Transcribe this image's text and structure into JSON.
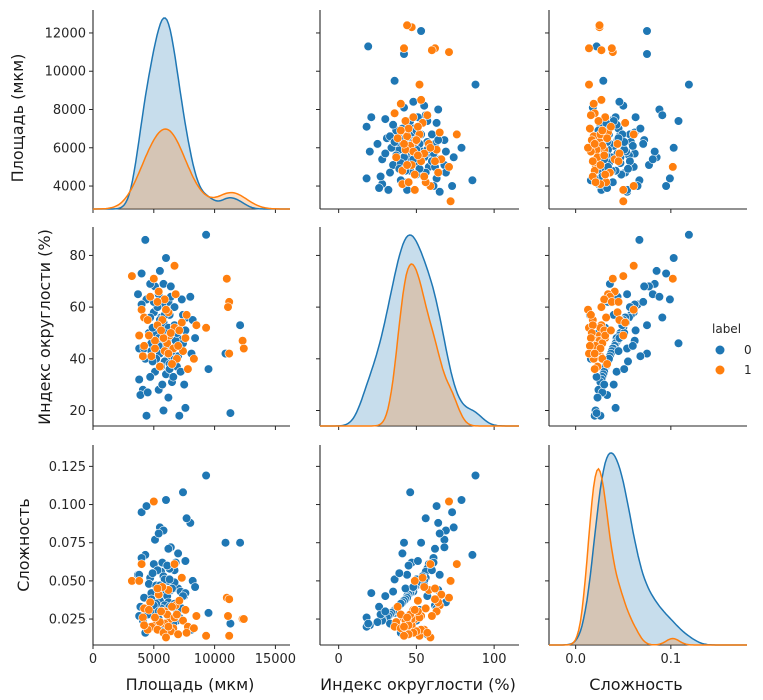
{
  "chart_data": {
    "type": "scatter",
    "subtype": "pairplot",
    "variables": [
      "Площадь (мкм)",
      "Индекс округлости (%)",
      "Сложность"
    ],
    "hue": "label",
    "legend": {
      "title": "label",
      "entries": [
        {
          "label": "0",
          "color": "#1f77b4"
        },
        {
          "label": "1",
          "color": "#ff7f0e"
        }
      ],
      "placement": "right"
    },
    "diagonal": "kde",
    "axes": {
      "area": {
        "label": "Площадь (мкм)",
        "xlim": [
          0,
          16200
        ],
        "ylim": [
          2800,
          13200
        ],
        "xticks": [
          0,
          5000,
          10000,
          15000
        ],
        "xtick_labels": [
          "0",
          "5000",
          "10000",
          "15000"
        ],
        "yticks": [
          4000,
          6000,
          8000,
          10000,
          12000
        ],
        "ytick_labels": [
          "4000",
          "6000",
          "8000",
          "10000",
          "12000"
        ]
      },
      "roundness": {
        "label": "Индекс округлости (%)",
        "xlim": [
          -12,
          116
        ],
        "ylim": [
          14,
          91
        ],
        "xticks": [
          0,
          50,
          100
        ],
        "xtick_labels": [
          "0",
          "50",
          "100"
        ],
        "yticks": [
          20,
          40,
          60,
          80
        ],
        "ytick_labels": [
          "20",
          "40",
          "60",
          "80"
        ]
      },
      "complexity": {
        "label": "Сложность",
        "xlim": [
          -0.028,
          0.18
        ],
        "ylim": [
          0.008,
          0.139
        ],
        "xticks": [
          0.0,
          0.1
        ],
        "xtick_labels": [
          "0.0",
          "0.1"
        ],
        "yticks": [
          0.025,
          0.05,
          0.075,
          0.1,
          0.125
        ],
        "ytick_labels": [
          "0.025",
          "0.050",
          "0.075",
          "0.100",
          "0.125"
        ]
      }
    },
    "points": {
      "label_0": [
        [
          4300,
          86,
          0.067
        ],
        [
          9300,
          88,
          0.119
        ],
        [
          6000,
          79,
          0.103
        ],
        [
          5500,
          74,
          0.085
        ],
        [
          4000,
          73,
          0.095
        ],
        [
          5800,
          69,
          0.083
        ],
        [
          5100,
          68,
          0.077
        ],
        [
          6400,
          68,
          0.072
        ],
        [
          5400,
          65,
          0.081
        ],
        [
          3700,
          65,
          0.054
        ],
        [
          4400,
          63,
          0.099
        ],
        [
          4000,
          61,
          0.065
        ],
        [
          8000,
          64,
          0.088
        ],
        [
          6200,
          62,
          0.071
        ],
        [
          5700,
          61,
          0.062
        ],
        [
          6700,
          60,
          0.057
        ],
        [
          5000,
          58,
          0.061
        ],
        [
          6300,
          57,
          0.058
        ],
        [
          5600,
          56,
          0.056
        ],
        [
          4700,
          56,
          0.052
        ],
        [
          7700,
          56,
          0.091
        ],
        [
          5800,
          54,
          0.053
        ],
        [
          6200,
          52,
          0.05
        ],
        [
          4600,
          50,
          0.048
        ],
        [
          5200,
          50,
          0.047
        ],
        [
          5900,
          50,
          0.051
        ],
        [
          6600,
          49,
          0.046
        ],
        [
          7000,
          48,
          0.045
        ],
        [
          6300,
          48,
          0.043
        ],
        [
          5700,
          47,
          0.044
        ],
        [
          4800,
          46,
          0.042
        ],
        [
          5400,
          45,
          0.041
        ],
        [
          6100,
          44,
          0.04
        ],
        [
          3800,
          44,
          0.054
        ],
        [
          4200,
          44,
          0.039
        ],
        [
          4800,
          43,
          0.038
        ],
        [
          5500,
          42,
          0.037
        ],
        [
          6200,
          41,
          0.036
        ],
        [
          6700,
          40,
          0.035
        ],
        [
          5900,
          39,
          0.034
        ],
        [
          6300,
          38,
          0.033
        ],
        [
          5600,
          37,
          0.032
        ],
        [
          6900,
          37,
          0.031
        ],
        [
          7200,
          35,
          0.043
        ],
        [
          9500,
          36,
          0.029
        ],
        [
          5100,
          35,
          0.03
        ],
        [
          6000,
          34,
          0.029
        ],
        [
          4700,
          33,
          0.028
        ],
        [
          3800,
          32,
          0.027
        ],
        [
          6500,
          31,
          0.026
        ],
        [
          5400,
          28,
          0.025
        ],
        [
          4100,
          28,
          0.024
        ],
        [
          7500,
          30,
          0.04
        ],
        [
          3900,
          26,
          0.033
        ],
        [
          4500,
          27,
          0.028
        ],
        [
          6200,
          25,
          0.023
        ],
        [
          5800,
          20,
          0.021
        ],
        [
          7600,
          21,
          0.042
        ],
        [
          4400,
          18,
          0.02
        ],
        [
          7100,
          18,
          0.026
        ],
        [
          11300,
          19,
          0.022
        ],
        [
          10900,
          42,
          0.075
        ],
        [
          7400,
          46,
          0.108
        ],
        [
          8200,
          55,
          0.05
        ],
        [
          6800,
          47,
          0.062
        ],
        [
          5300,
          60,
          0.057
        ],
        [
          6700,
          53,
          0.049
        ],
        [
          7400,
          57,
          0.04
        ],
        [
          6400,
          64,
          0.044
        ],
        [
          5200,
          40,
          0.035
        ],
        [
          4900,
          52,
          0.031
        ],
        [
          6100,
          45,
          0.06
        ],
        [
          5700,
          30,
          0.03
        ],
        [
          7000,
          41,
          0.068
        ],
        [
          4300,
          40,
          0.016
        ],
        [
          6900,
          50,
          0.024
        ],
        [
          5900,
          57,
          0.015
        ],
        [
          6600,
          33,
          0.022
        ],
        [
          5000,
          62,
          0.034
        ],
        [
          8100,
          42,
          0.018
        ],
        [
          12100,
          53,
          0.075
        ],
        [
          5400,
          48,
          0.03
        ],
        [
          6300,
          36,
          0.051
        ],
        [
          4700,
          69,
          0.036
        ],
        [
          5500,
          55,
          0.047
        ],
        [
          6500,
          43,
          0.045
        ],
        [
          7300,
          63,
          0.032
        ],
        [
          4900,
          39,
          0.055
        ],
        [
          7600,
          51,
          0.063
        ],
        [
          8400,
          48,
          0.046
        ]
      ],
      "label_1": [
        [
          3200,
          72,
          0.05
        ],
        [
          6700,
          76,
          0.061
        ],
        [
          11000,
          71,
          0.039
        ],
        [
          5000,
          71,
          0.102
        ],
        [
          5400,
          66,
          0.041
        ],
        [
          6800,
          65,
          0.034
        ],
        [
          4700,
          64,
          0.036
        ],
        [
          5900,
          63,
          0.03
        ],
        [
          11200,
          62,
          0.038
        ],
        [
          11100,
          60,
          0.027
        ],
        [
          4000,
          59,
          0.061
        ],
        [
          6200,
          58,
          0.044
        ],
        [
          4200,
          56,
          0.032
        ],
        [
          5700,
          55,
          0.046
        ],
        [
          7300,
          54,
          0.052
        ],
        [
          8500,
          53,
          0.027
        ],
        [
          9300,
          52,
          0.014
        ],
        [
          3800,
          49,
          0.05
        ],
        [
          6300,
          49,
          0.025
        ],
        [
          5100,
          47,
          0.021
        ],
        [
          12300,
          47,
          0.025
        ],
        [
          12400,
          44,
          0.025
        ],
        [
          7600,
          48,
          0.031
        ],
        [
          6100,
          46,
          0.028
        ],
        [
          4100,
          41,
          0.026
        ],
        [
          4800,
          41,
          0.02
        ],
        [
          5900,
          43,
          0.022
        ],
        [
          6600,
          44,
          0.019
        ],
        [
          7400,
          43,
          0.024
        ],
        [
          5500,
          37,
          0.023
        ],
        [
          7800,
          36,
          0.02
        ],
        [
          6700,
          52,
          0.026
        ],
        [
          4500,
          55,
          0.018
        ],
        [
          5300,
          53,
          0.018
        ],
        [
          6400,
          50,
          0.017
        ],
        [
          5800,
          48,
          0.016
        ],
        [
          4200,
          45,
          0.021
        ],
        [
          7000,
          45,
          0.015
        ],
        [
          6900,
          40,
          0.028
        ],
        [
          8300,
          40,
          0.019
        ],
        [
          11200,
          42,
          0.014
        ],
        [
          5100,
          44,
          0.026
        ],
        [
          5600,
          51,
          0.03
        ],
        [
          6000,
          59,
          0.013
        ],
        [
          7700,
          57,
          0.016
        ],
        [
          6200,
          42,
          0.02
        ],
        [
          5300,
          62,
          0.045
        ],
        [
          6500,
          38,
          0.033
        ],
        [
          4600,
          49,
          0.031
        ],
        [
          7100,
          51,
          0.037
        ]
      ]
    }
  }
}
